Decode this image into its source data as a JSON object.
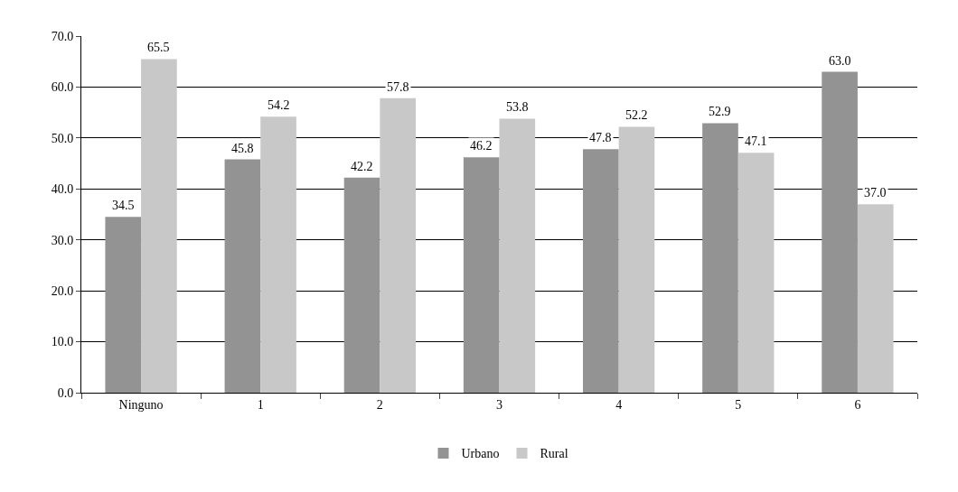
{
  "chart_data": {
    "type": "bar",
    "categories": [
      "Ninguno",
      "1",
      "2",
      "3",
      "4",
      "5",
      "6"
    ],
    "series": [
      {
        "name": "Urbano",
        "color": "#939393",
        "values": [
          34.5,
          45.8,
          42.2,
          46.2,
          47.8,
          52.9,
          63.0
        ],
        "value_labels": [
          "34.5",
          "45.8",
          "42.2",
          "46.2",
          "47.8",
          "52.9",
          "63.0"
        ]
      },
      {
        "name": "Rural",
        "color": "#c8c8c8",
        "values": [
          65.5,
          54.2,
          57.8,
          53.8,
          52.2,
          47.1,
          37.0
        ],
        "value_labels": [
          "65.5",
          "54.2",
          "57.8",
          "53.8",
          "52.2",
          "47.1",
          "37.0"
        ]
      }
    ],
    "ylim": [
      0,
      70
    ],
    "yticks": [
      {
        "value": 0,
        "label": "0.0"
      },
      {
        "value": 10,
        "label": "10.0"
      },
      {
        "value": 20,
        "label": "20.0"
      },
      {
        "value": 30,
        "label": "30.0"
      },
      {
        "value": 40,
        "label": "40.0"
      },
      {
        "value": 50,
        "label": "50.0"
      },
      {
        "value": 60,
        "label": "60.0"
      },
      {
        "value": 70,
        "label": "70.0"
      }
    ],
    "grid": "y",
    "legend": "bottom"
  }
}
